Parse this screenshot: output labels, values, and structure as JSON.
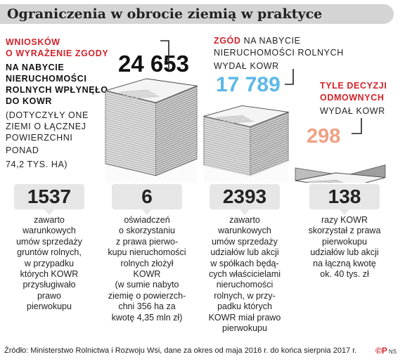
{
  "title": "Ograniczenia w obrocie ziemią w praktyce",
  "chart_data": {
    "type": "bar",
    "categories": [
      "wnioski o wyrażenie zgody",
      "zgody",
      "decyzje odmowne"
    ],
    "values": [
      24653,
      17789,
      298
    ],
    "value_labels": [
      "24 653",
      "17 789",
      "298"
    ],
    "colors": [
      "#111111",
      "#5bb8e8",
      "#f0a184"
    ]
  },
  "left": {
    "red_lines": [
      "WNIOSKÓW",
      "O WYRAŻENIE ZGODY"
    ],
    "bold_lines": [
      "NA  NABYCIE",
      "NIERUCHOMOŚCI",
      "ROLNYCH WPŁYNĘŁO",
      "DO KOWR"
    ],
    "normal_lines": [
      "(DOTYCZYŁY ONE",
      "ZIEMI O ŁĄCZNEJ",
      "POWIERZCHNI",
      "PONAD",
      "74,2 TYS. HA)"
    ]
  },
  "middle": {
    "red": "ZGÓD",
    "line1_rest": " NA NABYCIE",
    "line2": "NIERUCHOMOŚCI ROLNYCH",
    "line3": "WYDAŁ KOWR"
  },
  "right": {
    "red_lines": [
      "TYLE DECYZJI",
      "ODMOWNYCH"
    ],
    "line3": "WYDAŁ KOWR"
  },
  "stats": [
    {
      "value": "1537",
      "text": "zawarto\nwarunkowych\numów sprzedaży\ngruntów rolnych,\nw przypadku\nktórych KOWR\nprzysługiwało\nprawo\npierwokupu"
    },
    {
      "value": "6",
      "text": "oświadczeń\no skorzystaniu\nz prawa pierwo-\nkupu nieruchomości\nrolnych złożył\nKOWR\n(w sumie nabyto\nziemię o powierzch-\nchni 356 ha za\nkwotę 4,35 mln zł)"
    },
    {
      "value": "2393",
      "text": "zawarto\nwarunkowych\numów sprzedaży\nudziałów lub akcji\nw spółkach będą-\ncych właścicielami\nnieruchomości\nrolnych, w przy-\npadku których\nKOWR miał prawo\npierwokupu"
    },
    {
      "value": "138",
      "text": "razy KOWR\nskorzystał z prawa\npierwokupu\nudziałów lub akcji\nna łączną kwotę\nok. 40 tys. zł"
    }
  ],
  "source": "Źródło: Ministerstwo Rolnictwa i Rozwoju Wsi, dane za okres od maja 2016 r. do końca sierpnia 2017 r.",
  "logo": {
    "mark": "©P",
    "suffix": "NS"
  }
}
